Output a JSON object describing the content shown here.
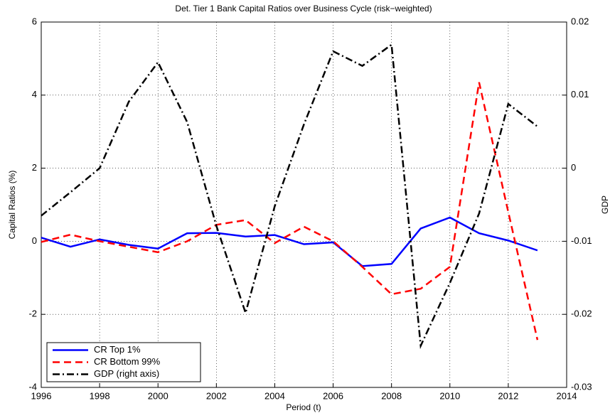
{
  "chart_data": {
    "type": "line",
    "title": "Det. Tier 1 Bank Capital Ratios over Business Cycle (risk−weighted)",
    "xlabel": "Period (t)",
    "ylabel": "Capital Ratios (%)",
    "y2label": "GDP",
    "x": [
      1996,
      1997,
      1998,
      1999,
      2000,
      2001,
      2002,
      2003,
      2004,
      2005,
      2006,
      2007,
      2008,
      2009,
      2010,
      2011,
      2012,
      2013
    ],
    "series": [
      {
        "name": "CR Top 1%",
        "color": "#0000ff",
        "style": "solid",
        "axis": "y",
        "values": [
          0.1,
          -0.15,
          0.05,
          -0.1,
          -0.2,
          0.22,
          0.23,
          0.13,
          0.17,
          -0.08,
          -0.03,
          -0.68,
          -0.62,
          0.35,
          0.65,
          0.22,
          0.02,
          -0.25
        ]
      },
      {
        "name": "CR Bottom 99%",
        "color": "#ff0000",
        "style": "dashed",
        "axis": "y",
        "values": [
          -0.02,
          0.18,
          0.0,
          -0.15,
          -0.3,
          0.0,
          0.45,
          0.58,
          -0.05,
          0.4,
          0.0,
          -0.7,
          -1.45,
          -1.3,
          -0.7,
          4.35,
          0.8,
          -2.7
        ]
      },
      {
        "name": "GDP (right axis)",
        "color": "#000000",
        "style": "dashdot",
        "axis": "y2",
        "values": [
          -0.0065,
          -0.0033,
          0.0,
          0.0091,
          0.0145,
          0.0063,
          -0.0079,
          -0.0198,
          -0.0052,
          0.006,
          0.016,
          0.014,
          0.0169,
          -0.0243,
          -0.0157,
          -0.0062,
          0.0088,
          0.0057
        ]
      }
    ],
    "xlim": [
      1996,
      2014
    ],
    "xticks": [
      1996,
      1998,
      2000,
      2002,
      2004,
      2006,
      2008,
      2010,
      2012,
      2014
    ],
    "ylim": [
      -4,
      6
    ],
    "yticks": [
      -4,
      -2,
      0,
      2,
      4,
      6
    ],
    "y2lim": [
      -0.03,
      0.02
    ],
    "y2ticks": [
      -0.03,
      -0.02,
      -0.01,
      0,
      0.01,
      0.02
    ],
    "grid": true,
    "legend": "lower left"
  }
}
